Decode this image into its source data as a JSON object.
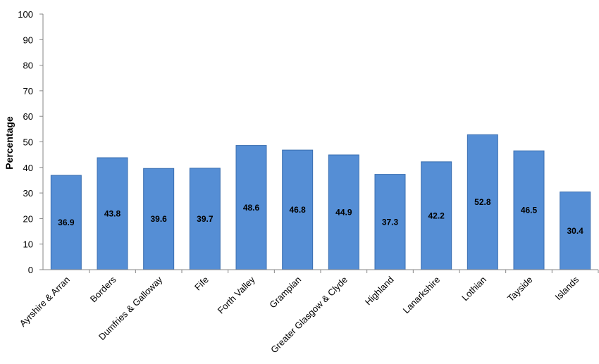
{
  "chart_data": {
    "type": "bar",
    "title": "",
    "xlabel": "",
    "ylabel": "Percentage",
    "ylim": [
      0,
      100
    ],
    "yticks": [
      0,
      10,
      20,
      30,
      40,
      50,
      60,
      70,
      80,
      90,
      100
    ],
    "categories": [
      "Ayrshire & Arran",
      "Borders",
      "Dumfries & Galloway",
      "Fife",
      "Forth Valley",
      "Grampian",
      "Greater Glasgow & Clyde",
      "Highland",
      "Lanarkshire",
      "Lothian",
      "Tayside",
      "Islands"
    ],
    "values": [
      36.9,
      43.8,
      39.6,
      39.7,
      48.6,
      46.8,
      44.9,
      37.3,
      42.2,
      52.8,
      46.5,
      30.4
    ],
    "data_labels": [
      "36.9",
      "43.8",
      "39.6",
      "39.7",
      "48.6",
      "46.8",
      "44.9",
      "37.3",
      "42.2",
      "52.8",
      "46.5",
      "30.4"
    ],
    "grid": false,
    "legend": "none",
    "bar_color": "#558ED5",
    "bar_edge_color": "#3A6EB0"
  }
}
